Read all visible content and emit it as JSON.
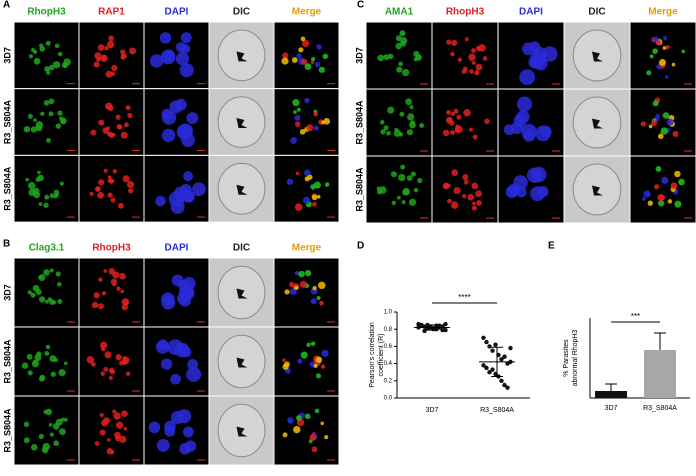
{
  "panels": [
    {
      "letter": "A",
      "columns": [
        "RhopH3",
        "RAP1",
        "DAPI",
        "DIC",
        "Merge"
      ],
      "column_colors": [
        "#1fa51f",
        "#e02020",
        "#2a2ad8",
        "#222222",
        "#e0a000"
      ],
      "rows": [
        "3D7",
        "R3_S804A",
        "R3_S804A"
      ]
    },
    {
      "letter": "B",
      "columns": [
        "Clag3.1",
        "RhopH3",
        "DAPI",
        "DIC",
        "Merge"
      ],
      "column_colors": [
        "#1fa51f",
        "#e02020",
        "#2a2ad8",
        "#222222",
        "#e0a000"
      ],
      "rows": [
        "3D7",
        "R3_S804A",
        "R3_S804A"
      ]
    },
    {
      "letter": "C",
      "columns": [
        "AMA1",
        "RhopH3",
        "DAPI",
        "DIC",
        "Merge"
      ],
      "column_colors": [
        "#1fa51f",
        "#e02020",
        "#2a2ad8",
        "#222222",
        "#e0a000"
      ],
      "rows": [
        "3D7",
        "R3_S804A",
        "R3_S804A"
      ]
    }
  ],
  "chart_data": [
    {
      "letter": "D",
      "type": "scatter",
      "ylabel": [
        "Pearson's correlation",
        "coefficient (R)"
      ],
      "categories": [
        "3D7",
        "R3_S804A"
      ],
      "groups": [
        {
          "values": [
            0.86,
            0.84,
            0.83,
            0.85,
            0.82,
            0.81,
            0.8,
            0.84,
            0.83,
            0.79,
            0.82,
            0.85,
            0.78,
            0.81,
            0.83,
            0.8,
            0.84,
            0.82,
            0.79,
            0.86
          ],
          "mean": 0.82,
          "sd": 0.03,
          "color": "#111111"
        },
        {
          "values": [
            0.7,
            0.65,
            0.6,
            0.55,
            0.62,
            0.5,
            0.45,
            0.48,
            0.4,
            0.42,
            0.38,
            0.35,
            0.3,
            0.33,
            0.28,
            0.25,
            0.2,
            0.15,
            0.12,
            0.58
          ],
          "mean": 0.42,
          "sd": 0.17,
          "color": "#111111"
        }
      ],
      "ylim": [
        0,
        1
      ],
      "yticks": [
        {
          "value": 0,
          "label": "0.0"
        },
        0.2,
        0.4,
        0.6,
        0.8,
        {
          "value": 1,
          "label": "1.0"
        }
      ],
      "annotation": "****"
    },
    {
      "letter": "E",
      "type": "bar",
      "ylabel": [
        "% Parasites",
        "abnormal RhopH3"
      ],
      "categories": [
        "3D7",
        "R3_S804A"
      ],
      "values": [
        7,
        48
      ],
      "errors": [
        7,
        17
      ],
      "colors": [
        "#111111",
        "#a8a8a8"
      ],
      "ylim": [
        0,
        80
      ],
      "annotation": "***"
    }
  ]
}
